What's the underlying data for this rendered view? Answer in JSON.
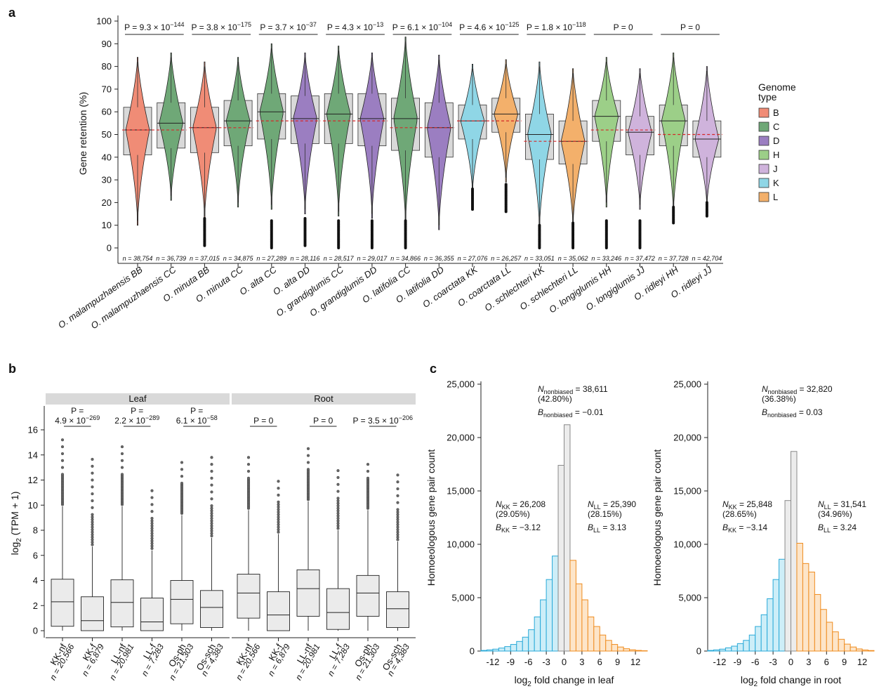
{
  "panels": {
    "a": "a",
    "b": "b",
    "c": "c"
  },
  "colors": {
    "B": "#f08c76",
    "C": "#6fa877",
    "D": "#9b7ec1",
    "H": "#9ccf88",
    "J": "#cfb3dc",
    "K": "#8fd6e6",
    "L": "#f3b06b",
    "box": "#d9d9d9",
    "median_dashed": "#d62728",
    "kk": "#28a9d8",
    "ll": "#ef8c1f",
    "center": "#bfbfbf"
  },
  "chart_data": [
    {
      "id": "a",
      "type": "violin-box",
      "ylabel": "Gene retention (%)",
      "ylim": [
        0,
        100
      ],
      "yticks": [
        0,
        10,
        20,
        30,
        40,
        50,
        60,
        70,
        80,
        90,
        100
      ],
      "legend": {
        "title": [
          "Genome",
          "type"
        ],
        "entries": [
          "B",
          "C",
          "D",
          "H",
          "J",
          "K",
          "L"
        ],
        "placement": "right"
      },
      "groups": [
        {
          "label": "O. malampuzhaensis BB",
          "genome": "B",
          "n": "n = 38,754",
          "q1": 41,
          "median": 52,
          "q3": 62,
          "max": 84,
          "min": 10,
          "outliers_to": null
        },
        {
          "label": "O. malampuzhaensis CC",
          "genome": "C",
          "n": "n = 36,739",
          "q1": 44,
          "median": 55,
          "q3": 64,
          "max": 86,
          "min": 21,
          "outliers_to": null
        },
        {
          "label": "O. minuta BB",
          "genome": "B",
          "n": "n = 37,015",
          "q1": 42,
          "median": 53,
          "q3": 62,
          "max": 82,
          "min": 12,
          "outliers_to": 1
        },
        {
          "label": "O. minuta CC",
          "genome": "C",
          "n": "n = 34,875",
          "q1": 45,
          "median": 56,
          "q3": 65,
          "max": 84,
          "min": 18,
          "outliers_to": null
        },
        {
          "label": "O. alta CC",
          "genome": "C",
          "n": "n = 27,289",
          "q1": 48,
          "median": 60,
          "q3": 68,
          "max": 90,
          "min": 17,
          "outliers_to": 0
        },
        {
          "label": "O. alta DD",
          "genome": "D",
          "n": "n = 28,116",
          "q1": 46,
          "median": 57,
          "q3": 67,
          "max": 86,
          "min": 15,
          "outliers_to": 1
        },
        {
          "label": "O. grandiglumis CC",
          "genome": "C",
          "n": "n = 28,517",
          "q1": 46,
          "median": 59,
          "q3": 68,
          "max": 89,
          "min": 14,
          "outliers_to": 0
        },
        {
          "label": "O. grandiglumis DD",
          "genome": "D",
          "n": "n = 29,017",
          "q1": 45,
          "median": 57,
          "q3": 68,
          "max": 86,
          "min": 13,
          "outliers_to": 0
        },
        {
          "label": "O. latifolia CC",
          "genome": "C",
          "n": "n = 34,866",
          "q1": 43,
          "median": 57,
          "q3": 66,
          "max": 93,
          "min": 10,
          "outliers_to": 0
        },
        {
          "label": "O. latifolia DD",
          "genome": "D",
          "n": "n = 36,355",
          "q1": 40,
          "median": 53,
          "q3": 64,
          "max": 85,
          "min": 8,
          "outliers_to": null
        },
        {
          "label": "O. coarctata KK",
          "genome": "K",
          "n": "n = 27,076",
          "q1": 48,
          "median": 56,
          "q3": 63,
          "max": 81,
          "min": 24,
          "outliers_to": 17
        },
        {
          "label": "O. coarctata LL",
          "genome": "L",
          "n": "n = 26,257",
          "q1": 51,
          "median": 59,
          "q3": 66,
          "max": 83,
          "min": 29,
          "outliers_to": 16
        },
        {
          "label": "O. schlechteri KK",
          "genome": "K",
          "n": "n = 33,051",
          "q1": 39,
          "median": 50,
          "q3": 59,
          "max": 82,
          "min": 8,
          "outliers_to": 0
        },
        {
          "label": "O. schlechteri LL",
          "genome": "L",
          "n": "n = 35,062",
          "q1": 37,
          "median": 47,
          "q3": 56,
          "max": 79,
          "min": 9,
          "outliers_to": 0
        },
        {
          "label": "O. longiglumis HH",
          "genome": "H",
          "n": "n = 33,246",
          "q1": 47,
          "median": 58,
          "q3": 65,
          "max": 84,
          "min": 18,
          "outliers_to": 0
        },
        {
          "label": "O. longiglumis JJ",
          "genome": "J",
          "n": "n = 37,472",
          "q1": 41,
          "median": 51,
          "q3": 58,
          "max": 79,
          "min": 17,
          "outliers_to": 0
        },
        {
          "label": "O. ridleyi HH",
          "genome": "H",
          "n": "n = 37,728",
          "q1": 45,
          "median": 56,
          "q3": 63,
          "max": 86,
          "min": 15,
          "outliers_to": 11
        },
        {
          "label": "O. ridleyi JJ",
          "genome": "J",
          "n": "n = 42,704",
          "q1": 40,
          "median": 48,
          "q3": 56,
          "max": 80,
          "min": 18,
          "outliers_to": 14
        }
      ],
      "pair_means": [
        52,
        53,
        56,
        56,
        53,
        56,
        47,
        52,
        50
      ],
      "pvalues": [
        {
          "base": "P = 9.3 × 10",
          "exp": "−144"
        },
        {
          "base": "P = 3.8 × 10",
          "exp": "−175"
        },
        {
          "base": "P = 3.7 × 10",
          "exp": "−37"
        },
        {
          "base": "P = 4.3 × 10",
          "exp": "−13"
        },
        {
          "base": "P = 6.1 × 10",
          "exp": "−104"
        },
        {
          "base": "P = 4.6 × 10",
          "exp": "−125"
        },
        {
          "base": "P = 1.8 × 10",
          "exp": "−118"
        },
        {
          "base": "P = 0",
          "exp": ""
        },
        {
          "base": "P = 0",
          "exp": ""
        }
      ]
    },
    {
      "id": "b",
      "type": "box",
      "ylabel_main": "log",
      "ylabel_sub": "2",
      "ylabel_rest": " (TPM + 1)",
      "ylim": [
        0,
        17
      ],
      "yticks": [
        0,
        2,
        4,
        6,
        8,
        10,
        12,
        14,
        16
      ],
      "facets": [
        {
          "title": "Leaf",
          "groups": [
            {
              "label": "KK-nf",
              "n": "n = 20,566",
              "q1": 0.35,
              "median": 2.3,
              "q3": 4.1,
              "whisker_low": 0,
              "whisker_high": 9.9,
              "outlier_max": 15.3
            },
            {
              "label": "KK-f",
              "n": "n = 6,879",
              "q1": 0,
              "median": 0.8,
              "q3": 2.7,
              "whisker_low": 0,
              "whisker_high": 6.7,
              "outlier_max": 14.0
            },
            {
              "label": "LL-nf",
              "n": "n = 20,981",
              "q1": 0.3,
              "median": 2.25,
              "q3": 4.05,
              "whisker_low": 0,
              "whisker_high": 9.9,
              "outlier_max": 14.8
            },
            {
              "label": "LL-f",
              "n": "n = 7,283",
              "q1": 0,
              "median": 0.7,
              "q3": 2.6,
              "whisker_low": 0,
              "whisker_high": 6.4,
              "outlier_max": 11.6
            },
            {
              "label": "Os-ph",
              "n": "n = 21,303",
              "q1": 0.55,
              "median": 2.5,
              "q3": 4.0,
              "whisker_low": 0,
              "whisker_high": 9.2,
              "outlier_max": 13.9
            },
            {
              "label": "Os-sch",
              "n": "n = 4,383",
              "q1": 0.25,
              "median": 1.85,
              "q3": 3.2,
              "whisker_low": 0,
              "whisker_high": 7.4,
              "outlier_max": 13.8
            }
          ],
          "pvalues": [
            {
              "line1": "P =",
              "base": "4.9 × 10",
              "exp": "−269"
            },
            {
              "line1": "P =",
              "base": "2.2 × 10",
              "exp": "−289"
            },
            {
              "line1": "P =",
              "base": "6.1 × 10",
              "exp": "−58"
            }
          ]
        },
        {
          "title": "Root",
          "groups": [
            {
              "label": "KK-nf",
              "n": "n = 20,566",
              "q1": 1.0,
              "median": 3.0,
              "q3": 4.5,
              "whisker_low": 0,
              "whisker_high": 9.6,
              "outlier_max": 14.3
            },
            {
              "label": "KK-f",
              "n": "n = 6,879",
              "q1": 0,
              "median": 1.25,
              "q3": 3.1,
              "whisker_low": 0,
              "whisker_high": 7.7,
              "outlier_max": 12.3
            },
            {
              "label": "LL-nf",
              "n": "n = 20,981",
              "q1": 1.15,
              "median": 3.35,
              "q3": 4.85,
              "whisker_low": 0,
              "whisker_high": 10.3,
              "outlier_max": 15.0
            },
            {
              "label": "LL-f",
              "n": "n = 7,283",
              "q1": 0.1,
              "median": 1.45,
              "q3": 3.35,
              "whisker_low": 0,
              "whisker_high": 8.0,
              "outlier_max": 12.8
            },
            {
              "label": "Os-ph",
              "n": "n = 21,303",
              "q1": 1.15,
              "median": 3.0,
              "q3": 4.4,
              "whisker_low": 0,
              "whisker_high": 9.6,
              "outlier_max": 13.4
            },
            {
              "label": "Os-sch",
              "n": "n = 4,383",
              "q1": 0.25,
              "median": 1.75,
              "q3": 3.1,
              "whisker_low": 0,
              "whisker_high": 7.1,
              "outlier_max": 12.9
            }
          ],
          "pvalues": [
            {
              "line1": "",
              "base": "P = 0",
              "exp": ""
            },
            {
              "line1": "",
              "base": "P = 0",
              "exp": ""
            },
            {
              "line1": "",
              "base": "P = 3.5 × 10",
              "exp": "−206"
            }
          ]
        }
      ]
    },
    {
      "id": "c-leaf",
      "type": "bar",
      "xlabel_main": "log",
      "xlabel_sub": "2",
      "xlabel_rest": " fold change in leaf",
      "ylabel": "Homoeologous gene pair count",
      "xlim": [
        -14,
        14
      ],
      "ylim": [
        0,
        25000
      ],
      "xticks": [
        -12,
        -9,
        -6,
        -3,
        0,
        3,
        6,
        9,
        12
      ],
      "yticks": [
        "0",
        "5,000",
        "10,000",
        "15,000",
        "20,000",
        "25,000"
      ],
      "bins_center": [
        -16,
        -15,
        -14,
        -13,
        -12,
        -11,
        -10,
        -9,
        -8,
        -7,
        -6,
        -5,
        -4,
        -3,
        -2,
        -1,
        0,
        1,
        2,
        3,
        4,
        5,
        6,
        7,
        8,
        9,
        10,
        11,
        12,
        13
      ],
      "counts": [
        20,
        30,
        60,
        110,
        180,
        280,
        420,
        620,
        900,
        1300,
        2000,
        3200,
        4800,
        6700,
        8900,
        17400,
        21200,
        8500,
        6300,
        4800,
        3200,
        2300,
        1500,
        1000,
        620,
        380,
        220,
        120,
        60,
        30
      ],
      "annotations": {
        "nonbiased": {
          "N_label": "N",
          "N_sub": "nonbiased",
          "N_val": " = 38,611",
          "pct": "(42.80%)",
          "B_label": "B",
          "B_sub": "nonbiased",
          "B_val": " = −0.01"
        },
        "kk": {
          "N_label": "N",
          "N_sub": "KK",
          "N_val": " = 26,208",
          "pct": "(29.05%)",
          "B_label": "B",
          "B_sub": "KK",
          "B_val": " = −3.12"
        },
        "ll": {
          "N_label": "N",
          "N_sub": "LL",
          "N_val": " = 25,390",
          "pct": "(28.15%)",
          "B_label": "B",
          "B_sub": "LL",
          "B_val": " = 3.13"
        }
      }
    },
    {
      "id": "c-root",
      "type": "bar",
      "xlabel_main": "log",
      "xlabel_sub": "2",
      "xlabel_rest": " fold change in root",
      "ylabel": "Homoeologous gene pair count",
      "xlim": [
        -14,
        14
      ],
      "ylim": [
        0,
        25000
      ],
      "xticks": [
        -12,
        -9,
        -6,
        -3,
        0,
        3,
        6,
        9,
        12
      ],
      "yticks": [
        "0",
        "5,000",
        "10,000",
        "15,000",
        "20,000",
        "25,000"
      ],
      "bins_center": [
        -16,
        -15,
        -14,
        -13,
        -12,
        -11,
        -10,
        -9,
        -8,
        -7,
        -6,
        -5,
        -4,
        -3,
        -2,
        -1,
        0,
        1,
        2,
        3,
        4,
        5,
        6,
        7,
        8,
        9,
        10,
        11,
        12,
        13
      ],
      "counts": [
        20,
        30,
        60,
        110,
        180,
        300,
        460,
        700,
        1000,
        1500,
        2300,
        3400,
        4900,
        6700,
        8600,
        14100,
        18700,
        10100,
        8200,
        7400,
        5300,
        3900,
        2700,
        1800,
        1100,
        650,
        380,
        200,
        100,
        50
      ],
      "annotations": {
        "nonbiased": {
          "N_label": "N",
          "N_sub": "nonbiased",
          "N_val": " = 32,820",
          "pct": "(36.38%)",
          "B_label": "B",
          "B_sub": "nonbiased",
          "B_val": " = 0.03"
        },
        "kk": {
          "N_label": "N",
          "N_sub": "KK",
          "N_val": " = 25,848",
          "pct": "(28.65%)",
          "B_label": "B",
          "B_sub": "KK",
          "B_val": " = −3.14"
        },
        "ll": {
          "N_label": "N",
          "N_sub": "LL",
          "N_val": " = 31,541",
          "pct": "(34.96%)",
          "B_label": "B",
          "B_sub": "LL",
          "B_val": " = 3.24"
        }
      }
    }
  ]
}
